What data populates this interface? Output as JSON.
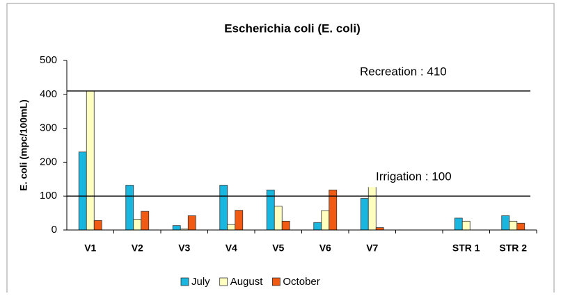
{
  "chart_data": {
    "type": "bar",
    "title": "Escherichia coli (E. coli)",
    "y_label": "E. coli (mpc/100mL)",
    "categories": [
      "V1",
      "V2",
      "V3",
      "V4",
      "V5",
      "V6",
      "V7",
      null,
      "STR 1",
      "STR 2"
    ],
    "series": [
      {
        "name": "July",
        "color": "#19b6e0",
        "values": [
          230,
          132,
          13,
          132,
          118,
          22,
          93,
          null,
          35,
          42
        ]
      },
      {
        "name": "August",
        "color": "#ffffc0",
        "values": [
          410,
          32,
          3,
          16,
          70,
          57,
          141,
          null,
          26,
          26
        ]
      },
      {
        "name": "October",
        "color": "#f05a12",
        "values": [
          28,
          55,
          42,
          58,
          26,
          118,
          7,
          null,
          null,
          20
        ]
      }
    ],
    "reference_lines": [
      {
        "label": "Recreation : 410",
        "value": 410
      },
      {
        "label": "Irrigation : 100",
        "value": 100
      }
    ],
    "ylim": [
      0,
      500
    ],
    "yticks": [
      0,
      100,
      200,
      300,
      400,
      500
    ],
    "grid": false,
    "legend": "bottom"
  }
}
